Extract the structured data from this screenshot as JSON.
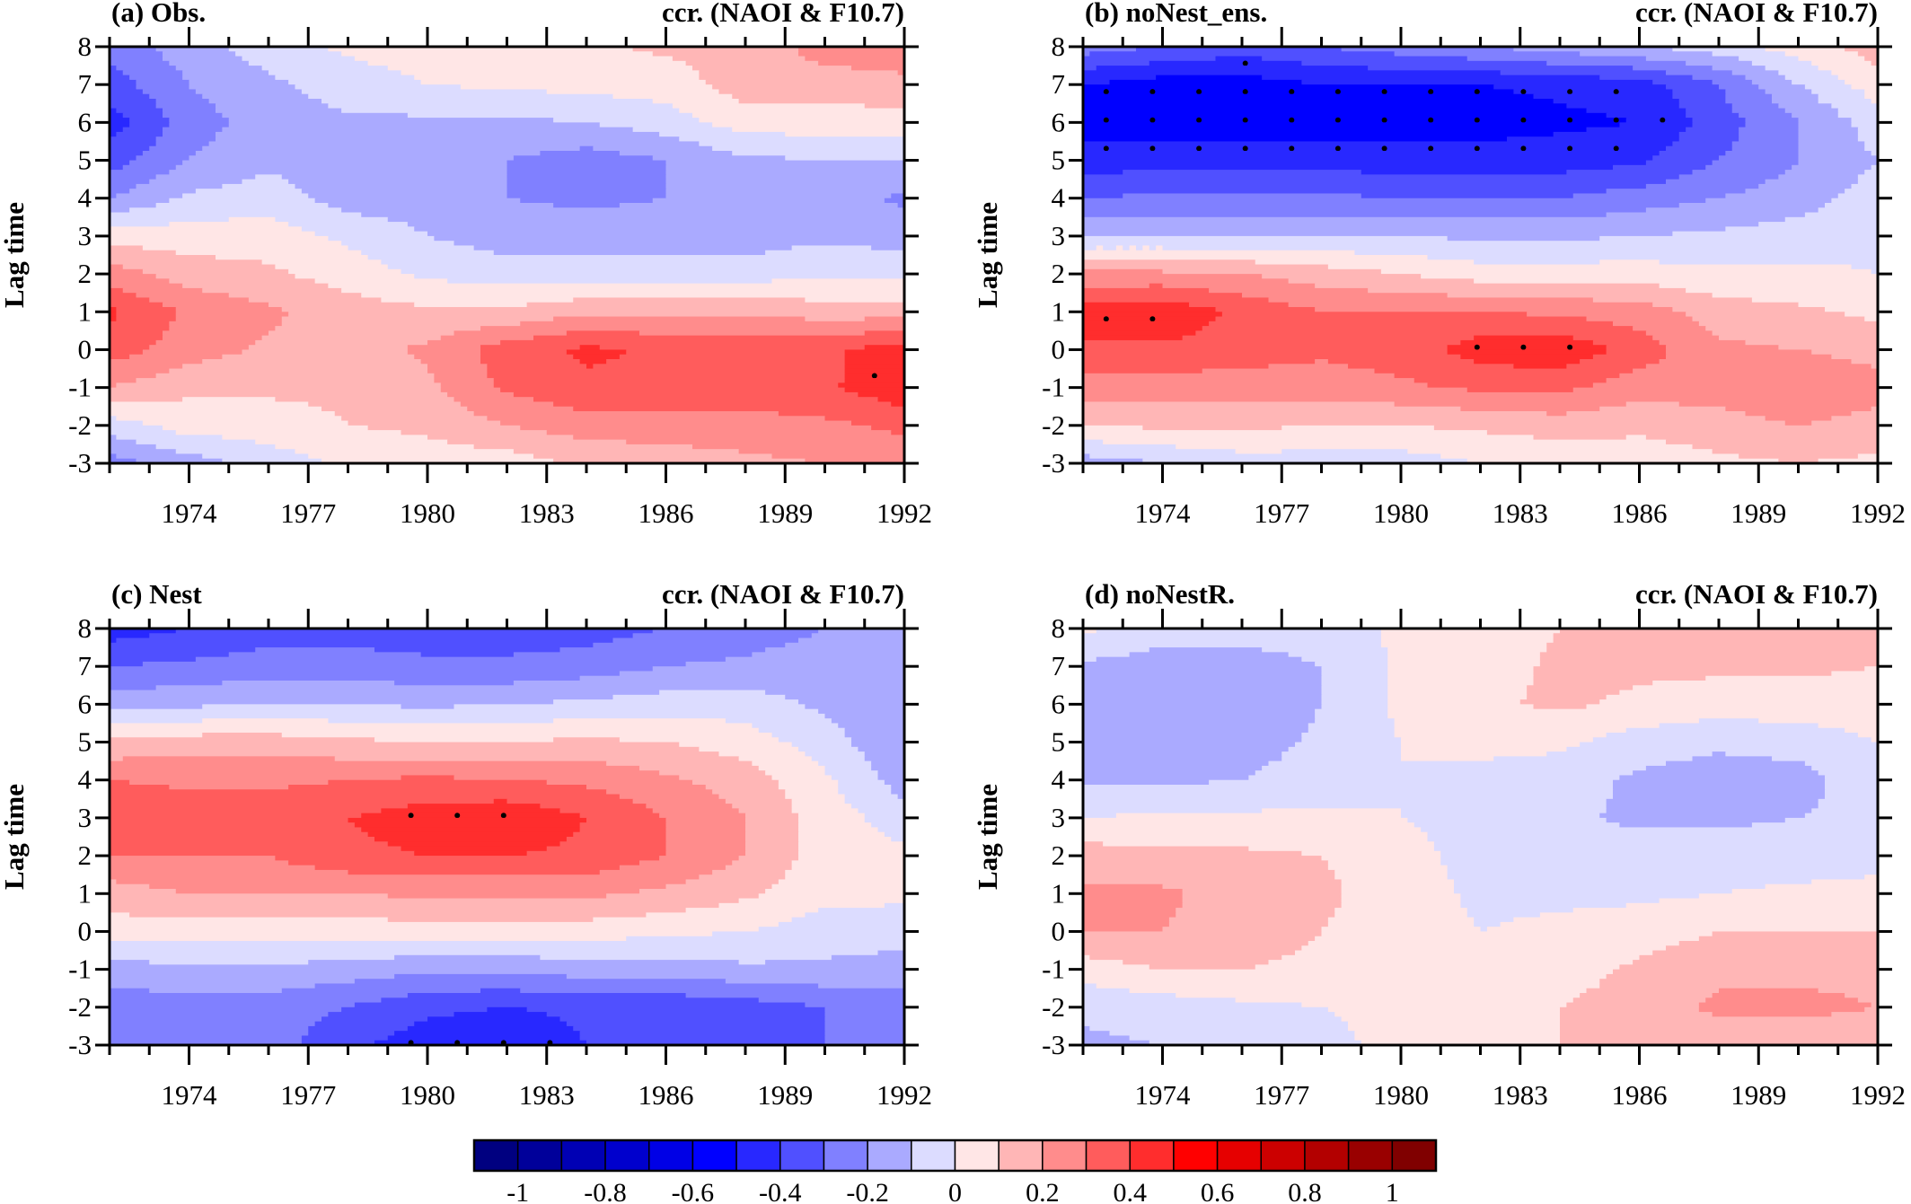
{
  "chart_data": [
    {
      "type": "heatmap",
      "title_left": "(a) Obs.",
      "title_right": "ccr. (NAOI & F10.7)",
      "ylabel": "Lag time",
      "xlabel": "",
      "xlim": [
        1972,
        1992
      ],
      "ylim": [
        -3,
        8
      ],
      "x": [
        1972,
        1974,
        1976,
        1978,
        1980,
        1982,
        1984,
        1986,
        1988,
        1990,
        1992
      ],
      "y": [
        8,
        7,
        6,
        5,
        4,
        3,
        2,
        1,
        0,
        -1,
        -2,
        -3
      ],
      "values": [
        [
          -0.25,
          -0.15,
          -0.05,
          0.02,
          0.05,
          0.05,
          0.08,
          0.12,
          0.12,
          0.25,
          0.25
        ],
        [
          -0.35,
          -0.2,
          -0.12,
          -0.05,
          0.0,
          0.02,
          0.03,
          0.05,
          0.15,
          0.15,
          0.18
        ],
        [
          -0.45,
          -0.25,
          -0.15,
          -0.12,
          -0.12,
          -0.12,
          -0.1,
          -0.05,
          0.05,
          0.05,
          0.05
        ],
        [
          -0.35,
          -0.2,
          -0.12,
          -0.15,
          -0.15,
          -0.2,
          -0.25,
          -0.2,
          -0.12,
          -0.1,
          -0.1
        ],
        [
          -0.2,
          -0.08,
          -0.05,
          -0.15,
          -0.15,
          -0.2,
          -0.22,
          -0.2,
          -0.15,
          -0.15,
          -0.22
        ],
        [
          0.05,
          0.05,
          0.05,
          -0.02,
          -0.1,
          -0.15,
          -0.15,
          -0.15,
          -0.15,
          -0.12,
          -0.15
        ],
        [
          0.25,
          0.15,
          0.12,
          0.05,
          -0.02,
          -0.05,
          -0.05,
          -0.05,
          -0.05,
          -0.02,
          -0.02
        ],
        [
          0.42,
          0.28,
          0.22,
          0.15,
          0.12,
          0.12,
          0.18,
          0.18,
          0.18,
          0.15,
          0.15
        ],
        [
          0.35,
          0.25,
          0.18,
          0.15,
          0.22,
          0.35,
          0.42,
          0.38,
          0.38,
          0.38,
          0.45
        ],
        [
          0.2,
          0.12,
          0.12,
          0.12,
          0.18,
          0.32,
          0.38,
          0.38,
          0.38,
          0.38,
          0.48
        ],
        [
          -0.05,
          0.05,
          0.05,
          0.1,
          0.12,
          0.2,
          0.25,
          0.25,
          0.25,
          0.28,
          0.32
        ],
        [
          -0.25,
          -0.15,
          -0.05,
          0.02,
          0.05,
          0.05,
          0.12,
          0.15,
          0.18,
          0.2,
          0.25
        ]
      ]
    },
    {
      "type": "heatmap",
      "title_left": "(b) noNest_ens.",
      "title_right": "ccr. (NAOI & F10.7)",
      "ylabel": "Lag time",
      "xlabel": "",
      "xlim": [
        1972,
        1992
      ],
      "ylim": [
        -3,
        8
      ],
      "x": [
        1972,
        1974,
        1976,
        1978,
        1980,
        1982,
        1984,
        1986,
        1988,
        1990,
        1992
      ],
      "y": [
        8,
        7,
        6,
        5,
        4,
        3,
        2,
        1,
        0,
        -1,
        -2,
        -3
      ],
      "values": [
        [
          -0.25,
          -0.3,
          -0.35,
          -0.3,
          -0.25,
          -0.2,
          -0.15,
          -0.1,
          -0.05,
          0.05,
          0.15
        ],
        [
          -0.5,
          -0.55,
          -0.55,
          -0.5,
          -0.5,
          -0.5,
          -0.48,
          -0.45,
          -0.3,
          -0.1,
          0.05
        ],
        [
          -0.55,
          -0.55,
          -0.55,
          -0.55,
          -0.55,
          -0.55,
          -0.52,
          -0.5,
          -0.35,
          -0.2,
          -0.05
        ],
        [
          -0.45,
          -0.45,
          -0.45,
          -0.45,
          -0.45,
          -0.45,
          -0.45,
          -0.42,
          -0.3,
          -0.2,
          -0.1
        ],
        [
          -0.3,
          -0.28,
          -0.28,
          -0.28,
          -0.3,
          -0.3,
          -0.3,
          -0.25,
          -0.2,
          -0.15,
          -0.05
        ],
        [
          -0.1,
          -0.1,
          -0.1,
          -0.1,
          -0.1,
          -0.12,
          -0.12,
          -0.1,
          -0.08,
          -0.05,
          -0.02
        ],
        [
          0.22,
          0.22,
          0.2,
          0.15,
          0.1,
          0.05,
          0.05,
          0.05,
          0.02,
          0.02,
          0.0
        ],
        [
          0.45,
          0.48,
          0.38,
          0.3,
          0.3,
          0.3,
          0.28,
          0.25,
          0.15,
          0.12,
          0.08
        ],
        [
          0.38,
          0.38,
          0.35,
          0.32,
          0.35,
          0.45,
          0.48,
          0.35,
          0.22,
          0.2,
          0.15
        ],
        [
          0.25,
          0.25,
          0.25,
          0.25,
          0.28,
          0.32,
          0.32,
          0.25,
          0.25,
          0.3,
          0.25
        ],
        [
          0.1,
          0.12,
          0.12,
          0.1,
          0.1,
          0.12,
          0.15,
          0.12,
          0.15,
          0.2,
          0.15
        ],
        [
          -0.15,
          -0.1,
          -0.05,
          -0.05,
          -0.05,
          0.0,
          0.02,
          0.05,
          0.08,
          0.1,
          0.08
        ]
      ]
    },
    {
      "type": "heatmap",
      "title_left": "(c) Nest",
      "title_right": "ccr. (NAOI & F10.7)",
      "ylabel": "Lag time",
      "xlabel": "",
      "xlim": [
        1972,
        1992
      ],
      "ylim": [
        -3,
        8
      ],
      "x": [
        1972,
        1974,
        1976,
        1978,
        1980,
        1982,
        1984,
        1986,
        1988,
        1990,
        1992
      ],
      "y": [
        8,
        7,
        6,
        5,
        4,
        3,
        2,
        1,
        0,
        -1,
        -2,
        -3
      ],
      "values": [
        [
          -0.45,
          -0.4,
          -0.35,
          -0.35,
          -0.35,
          -0.35,
          -0.35,
          -0.3,
          -0.25,
          -0.2,
          -0.2
        ],
        [
          -0.3,
          -0.28,
          -0.25,
          -0.25,
          -0.28,
          -0.28,
          -0.25,
          -0.2,
          -0.18,
          -0.15,
          -0.15
        ],
        [
          -0.15,
          -0.12,
          -0.1,
          -0.1,
          -0.12,
          -0.1,
          -0.08,
          -0.05,
          -0.05,
          -0.12,
          -0.2
        ],
        [
          0.12,
          0.15,
          0.15,
          0.12,
          0.1,
          0.1,
          0.12,
          0.1,
          0.05,
          -0.05,
          -0.2
        ],
        [
          0.3,
          0.28,
          0.28,
          0.3,
          0.32,
          0.3,
          0.28,
          0.22,
          0.15,
          0.02,
          -0.15
        ],
        [
          0.4,
          0.35,
          0.35,
          0.4,
          0.45,
          0.48,
          0.4,
          0.3,
          0.2,
          0.05,
          -0.05
        ],
        [
          0.3,
          0.3,
          0.3,
          0.38,
          0.4,
          0.4,
          0.38,
          0.3,
          0.2,
          0.05,
          0.02
        ],
        [
          0.15,
          0.2,
          0.2,
          0.2,
          0.22,
          0.22,
          0.22,
          0.18,
          0.12,
          0.03,
          0.02
        ],
        [
          0.05,
          0.05,
          0.05,
          0.05,
          0.05,
          0.05,
          0.05,
          0.02,
          0.0,
          -0.05,
          -0.05
        ],
        [
          -0.15,
          -0.12,
          -0.12,
          -0.15,
          -0.18,
          -0.18,
          -0.15,
          -0.15,
          -0.12,
          -0.12,
          -0.15
        ],
        [
          -0.25,
          -0.25,
          -0.25,
          -0.3,
          -0.38,
          -0.4,
          -0.38,
          -0.38,
          -0.35,
          -0.3,
          -0.25
        ],
        [
          -0.25,
          -0.22,
          -0.25,
          -0.38,
          -0.45,
          -0.48,
          -0.4,
          -0.35,
          -0.3,
          -0.3,
          -0.25
        ]
      ]
    },
    {
      "type": "heatmap",
      "title_left": "(d) noNestR.",
      "title_right": "ccr. (NAOI & F10.7)",
      "ylabel": "Lag time",
      "xlabel": "",
      "xlim": [
        1972,
        1992
      ],
      "ylim": [
        -3,
        8
      ],
      "x": [
        1972,
        1974,
        1976,
        1978,
        1980,
        1982,
        1984,
        1986,
        1988,
        1990,
        1992
      ],
      "y": [
        8,
        7,
        6,
        5,
        4,
        3,
        2,
        1,
        0,
        -1,
        -2,
        -3
      ],
      "values": [
        [
          0.02,
          -0.05,
          -0.05,
          -0.05,
          0.02,
          0.05,
          0.1,
          0.12,
          0.12,
          0.12,
          0.12
        ],
        [
          -0.12,
          -0.15,
          -0.15,
          -0.1,
          0.02,
          0.05,
          0.12,
          0.12,
          0.12,
          0.12,
          0.1
        ],
        [
          -0.15,
          -0.18,
          -0.18,
          -0.1,
          0.02,
          0.08,
          0.12,
          0.08,
          0.05,
          0.05,
          0.05
        ],
        [
          -0.15,
          -0.18,
          -0.15,
          -0.08,
          0.0,
          0.02,
          0.02,
          -0.05,
          -0.08,
          -0.05,
          0.0
        ],
        [
          -0.12,
          -0.12,
          -0.1,
          -0.05,
          0.0,
          -0.02,
          -0.05,
          -0.12,
          -0.15,
          -0.15,
          -0.02
        ],
        [
          0.0,
          0.02,
          0.02,
          0.02,
          0.0,
          -0.05,
          -0.08,
          -0.12,
          -0.12,
          -0.1,
          -0.05
        ],
        [
          0.15,
          0.12,
          0.12,
          0.1,
          0.05,
          -0.05,
          -0.05,
          -0.05,
          -0.05,
          -0.05,
          -0.02
        ],
        [
          0.22,
          0.22,
          0.15,
          0.12,
          0.05,
          -0.02,
          -0.02,
          -0.02,
          0.0,
          0.02,
          0.02
        ],
        [
          0.2,
          0.2,
          0.15,
          0.1,
          0.05,
          0.0,
          0.02,
          0.05,
          0.1,
          0.1,
          0.1
        ],
        [
          0.05,
          0.1,
          0.1,
          0.08,
          0.05,
          0.02,
          0.05,
          0.12,
          0.18,
          0.18,
          0.18
        ],
        [
          -0.08,
          -0.05,
          -0.02,
          0.0,
          0.02,
          0.02,
          0.1,
          0.15,
          0.22,
          0.22,
          0.2
        ],
        [
          -0.12,
          -0.1,
          -0.05,
          -0.02,
          0.02,
          0.02,
          0.1,
          0.12,
          0.15,
          0.15,
          0.15
        ]
      ]
    }
  ],
  "x_ticks": [
    "1974",
    "1977",
    "1980",
    "1983",
    "1986",
    "1989",
    "1992"
  ],
  "x_tick_values": [
    1974,
    1977,
    1980,
    1983,
    1986,
    1989,
    1992
  ],
  "y_ticks": [
    "8",
    "7",
    "6",
    "5",
    "4",
    "3",
    "2",
    "1",
    "0",
    "-1",
    "-2",
    "-3"
  ],
  "y_tick_values": [
    8,
    7,
    6,
    5,
    4,
    3,
    2,
    1,
    0,
    -1,
    -2,
    -3
  ],
  "colorbar": {
    "levels": [
      -1,
      -0.9,
      -0.8,
      -0.7,
      -0.6,
      -0.5,
      -0.4,
      -0.3,
      -0.2,
      -0.1,
      0,
      0.1,
      0.2,
      0.3,
      0.4,
      0.5,
      0.6,
      0.7,
      0.8,
      0.9,
      1
    ],
    "labels": [
      "-1",
      "-0.8",
      "-0.6",
      "-0.4",
      "-0.2",
      "0",
      "0.2",
      "0.4",
      "0.6",
      "0.8",
      "1"
    ],
    "colors": [
      "#000080",
      "#00009a",
      "#0000b4",
      "#0000cd",
      "#0000e6",
      "#0000ff",
      "#2828ff",
      "#5050ff",
      "#8080ff",
      "#aaaaff",
      "#dcdcff",
      "#ffe6e6",
      "#ffb6b6",
      "#ff8c8c",
      "#ff5c5c",
      "#ff2d2d",
      "#ff0000",
      "#e60000",
      "#cc0000",
      "#b30000",
      "#990000",
      "#800000"
    ]
  }
}
